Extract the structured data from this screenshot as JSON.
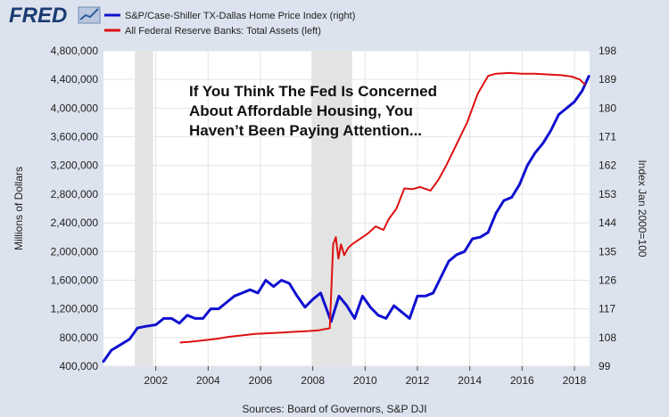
{
  "brand": {
    "logo_text": "FRED",
    "logo_icon": "line-chart-icon"
  },
  "chart_data": {
    "type": "line",
    "legend_placement": "top-left",
    "grid": true,
    "annotation_lines": [
      "If You Think The Fed Is Concerned",
      "About Affordable Housing, You",
      "Haven’t Been Paying Attention..."
    ],
    "source": "Sources: Board of Governors, S&P DJI",
    "x_ticks": [
      "2002",
      "2004",
      "2006",
      "2008",
      "2010",
      "2012",
      "2014",
      "2016",
      "2018"
    ],
    "xlim": [
      2000.0,
      2018.58
    ],
    "left_axis": {
      "label": "Millions of Dollars",
      "ylim": [
        400000,
        4800000
      ],
      "tick_labels": [
        "400,000",
        "800,000",
        "1,200,000",
        "1,600,000",
        "2,000,000",
        "2,400,000",
        "2,800,000",
        "3,200,000",
        "3,600,000",
        "4,000,000",
        "4,400,000",
        "4,800,000"
      ]
    },
    "right_axis": {
      "label": "Index Jan 2000=100",
      "ylim": [
        99,
        198
      ],
      "tick_labels": [
        "99",
        "108",
        "117",
        "126",
        "135",
        "144",
        "153",
        "162",
        "171",
        "180",
        "189",
        "198"
      ]
    },
    "recessions": [
      [
        2001.2,
        2001.9
      ],
      [
        2007.95,
        2009.5
      ]
    ],
    "series": [
      {
        "name": "S&P/Case-Shiller TX-Dallas Home Price Index (right)",
        "axis": "right",
        "color": "#1010d0",
        "x": [
          2000.0,
          2000.3,
          2000.6,
          2001.0,
          2001.3,
          2001.6,
          2002.0,
          2002.3,
          2002.6,
          2002.9,
          2003.2,
          2003.5,
          2003.8,
          2004.1,
          2004.4,
          2004.7,
          2005.0,
          2005.3,
          2005.6,
          2005.9,
          2006.2,
          2006.5,
          2006.8,
          2007.1,
          2007.4,
          2007.7,
          2008.0,
          2008.3,
          2008.7,
          2009.0,
          2009.3,
          2009.6,
          2009.9,
          2010.2,
          2010.5,
          2010.8,
          2011.1,
          2011.4,
          2011.7,
          2012.0,
          2012.3,
          2012.6,
          2012.9,
          2013.2,
          2013.5,
          2013.8,
          2014.1,
          2014.4,
          2014.7,
          2015.0,
          2015.3,
          2015.6,
          2015.9,
          2016.2,
          2016.5,
          2016.8,
          2017.1,
          2017.4,
          2017.7,
          2018.0,
          2018.3,
          2018.55
        ],
        "values": [
          100.5,
          104,
          105.5,
          107.5,
          111,
          111.5,
          112,
          114,
          114,
          112.5,
          115,
          114,
          114,
          117,
          117,
          119,
          121,
          122,
          123,
          122,
          126,
          124,
          126,
          125,
          121,
          117.5,
          120,
          122,
          113,
          121,
          118,
          114,
          121,
          117.5,
          115,
          114,
          118,
          116,
          114,
          121,
          121,
          122,
          127,
          132,
          134,
          135,
          139,
          139.5,
          141,
          147,
          151,
          152,
          156,
          162,
          166,
          169,
          173,
          178,
          180,
          182,
          185.5,
          190
        ]
      },
      {
        "name": "All Federal Reserve Banks: Total Assets (left)",
        "axis": "left",
        "color": "#dd1111",
        "x": [
          2002.95,
          2003.3,
          2003.8,
          2004.3,
          2004.8,
          2005.3,
          2005.8,
          2006.3,
          2006.8,
          2007.3,
          2007.8,
          2008.2,
          2008.65,
          2008.78,
          2008.88,
          2008.98,
          2009.08,
          2009.2,
          2009.35,
          2009.5,
          2009.7,
          2009.9,
          2010.1,
          2010.4,
          2010.7,
          2010.9,
          2011.2,
          2011.5,
          2011.8,
          2012.1,
          2012.5,
          2012.8,
          2013.1,
          2013.5,
          2013.9,
          2014.3,
          2014.7,
          2015.0,
          2015.5,
          2016.0,
          2016.5,
          2017.0,
          2017.5,
          2017.9,
          2018.2,
          2018.4
        ],
        "values": [
          730000,
          740000,
          760000,
          780000,
          810000,
          830000,
          850000,
          860000,
          870000,
          880000,
          890000,
          900000,
          930000,
          2100000,
          2200000,
          1900000,
          2100000,
          1950000,
          2050000,
          2100000,
          2150000,
          2200000,
          2250000,
          2350000,
          2300000,
          2450000,
          2600000,
          2880000,
          2870000,
          2900000,
          2850000,
          3000000,
          3200000,
          3500000,
          3800000,
          4200000,
          4450000,
          4480000,
          4490000,
          4480000,
          4480000,
          4470000,
          4460000,
          4440000,
          4400000,
          4330000
        ]
      }
    ]
  }
}
